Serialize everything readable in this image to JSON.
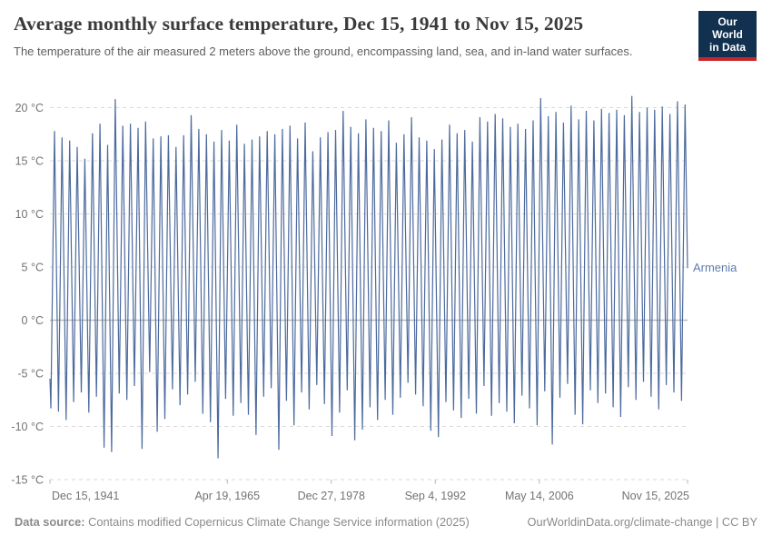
{
  "header": {
    "title": "Average monthly surface temperature, Dec 15, 1941 to Nov 15, 2025",
    "subtitle": "The temperature of the air measured 2 meters above the ground, encompassing land, sea, and in-land water surfaces.",
    "logo": {
      "line1": "Our World",
      "line2": "in Data",
      "bg_color": "#12304f",
      "accent_color": "#c5262c"
    }
  },
  "footer": {
    "datasource_label": "Data source:",
    "datasource_text": " Contains modified Copernicus Climate Change Service information (2025)",
    "credit": "OurWorldinData.org/climate-change | CC BY"
  },
  "chart_data": {
    "type": "line",
    "title": "Average monthly surface temperature, Dec 15, 1941 to Nov 15, 2025",
    "xlabel": "",
    "ylabel": "",
    "unit": "°C",
    "xlim": [
      1941.958,
      2025.874
    ],
    "ylim": [
      -15,
      21.5
    ],
    "grid": "horizontal-dashed",
    "legend": "line-end-label",
    "colors": {
      "line": "#4c6a9d",
      "entity_label": "#5e7cae",
      "grid": "#d9d9d9",
      "zero_line": "#bcbcbc",
      "axis_text": "#737373",
      "tick_mark": "#b3b3b3"
    },
    "y_ticks": [
      {
        "value": 20,
        "label": "20 °C"
      },
      {
        "value": 15,
        "label": "15 °C"
      },
      {
        "value": 10,
        "label": "10 °C"
      },
      {
        "value": 5,
        "label": "5 °C"
      },
      {
        "value": 0,
        "label": "0 °C"
      },
      {
        "value": -5,
        "label": "-5 °C"
      },
      {
        "value": -10,
        "label": "-10 °C"
      },
      {
        "value": -15,
        "label": "-15 °C"
      }
    ],
    "x_ticks": [
      {
        "value": 1941.958,
        "label": "Dec 15, 1941",
        "align": "start"
      },
      {
        "value": 1965.299,
        "label": "Apr 19, 1965",
        "align": "middle"
      },
      {
        "value": 1978.989,
        "label": "Dec 27, 1978",
        "align": "middle"
      },
      {
        "value": 1992.677,
        "label": "Sep 4, 1992",
        "align": "middle"
      },
      {
        "value": 2006.367,
        "label": "May 14, 2006",
        "align": "middle"
      },
      {
        "value": 2025.874,
        "label": "Nov 15, 2025",
        "align": "end"
      }
    ],
    "series": [
      {
        "name": "Armenia",
        "points": [
          [
            1941.96,
            -5.5
          ],
          [
            1942.08,
            -8.3
          ],
          [
            1942.55,
            17.8
          ],
          [
            1943.08,
            -8.6
          ],
          [
            1943.55,
            17.2
          ],
          [
            1944.08,
            -9.4
          ],
          [
            1944.55,
            16.9
          ],
          [
            1945.08,
            -7.7
          ],
          [
            1945.55,
            16.3
          ],
          [
            1946.08,
            -6.8
          ],
          [
            1946.55,
            15.2
          ],
          [
            1947.08,
            -8.7
          ],
          [
            1947.55,
            17.6
          ],
          [
            1948.08,
            -7.2
          ],
          [
            1948.55,
            18.5
          ],
          [
            1949.08,
            -12.0
          ],
          [
            1949.55,
            16.5
          ],
          [
            1950.08,
            -12.4
          ],
          [
            1950.55,
            20.8
          ],
          [
            1951.08,
            -6.9
          ],
          [
            1951.55,
            18.3
          ],
          [
            1952.08,
            -7.5
          ],
          [
            1952.55,
            18.5
          ],
          [
            1953.08,
            -6.2
          ],
          [
            1953.55,
            18.1
          ],
          [
            1954.08,
            -12.1
          ],
          [
            1954.55,
            18.7
          ],
          [
            1955.08,
            -4.9
          ],
          [
            1955.55,
            17.1
          ],
          [
            1956.08,
            -10.5
          ],
          [
            1956.55,
            17.3
          ],
          [
            1957.08,
            -9.3
          ],
          [
            1957.55,
            17.4
          ],
          [
            1958.08,
            -6.5
          ],
          [
            1958.55,
            16.3
          ],
          [
            1959.08,
            -8.0
          ],
          [
            1959.55,
            17.4
          ],
          [
            1960.08,
            -7.0
          ],
          [
            1960.55,
            19.3
          ],
          [
            1961.08,
            -5.8
          ],
          [
            1961.55,
            18.0
          ],
          [
            1962.08,
            -8.8
          ],
          [
            1962.55,
            17.5
          ],
          [
            1963.08,
            -9.6
          ],
          [
            1963.55,
            16.8
          ],
          [
            1964.08,
            -13.0
          ],
          [
            1964.55,
            17.9
          ],
          [
            1965.08,
            -7.4
          ],
          [
            1965.55,
            16.9
          ],
          [
            1966.08,
            -9.0
          ],
          [
            1966.55,
            18.4
          ],
          [
            1967.08,
            -7.8
          ],
          [
            1967.55,
            16.6
          ],
          [
            1968.08,
            -8.9
          ],
          [
            1968.55,
            17.0
          ],
          [
            1969.08,
            -10.8
          ],
          [
            1969.55,
            17.3
          ],
          [
            1970.08,
            -7.2
          ],
          [
            1970.55,
            17.8
          ],
          [
            1971.08,
            -6.4
          ],
          [
            1971.55,
            17.5
          ],
          [
            1972.08,
            -12.2
          ],
          [
            1972.55,
            18.0
          ],
          [
            1973.08,
            -7.6
          ],
          [
            1973.55,
            18.3
          ],
          [
            1974.08,
            -9.9
          ],
          [
            1974.55,
            17.1
          ],
          [
            1975.08,
            -6.8
          ],
          [
            1975.55,
            18.6
          ],
          [
            1976.08,
            -8.4
          ],
          [
            1976.55,
            15.9
          ],
          [
            1977.08,
            -6.1
          ],
          [
            1977.55,
            17.2
          ],
          [
            1978.08,
            -7.9
          ],
          [
            1978.55,
            17.7
          ],
          [
            1979.08,
            -10.9
          ],
          [
            1979.55,
            17.9
          ],
          [
            1980.08,
            -8.7
          ],
          [
            1980.55,
            19.7
          ],
          [
            1981.08,
            -6.6
          ],
          [
            1981.55,
            18.2
          ],
          [
            1982.08,
            -11.3
          ],
          [
            1982.55,
            17.6
          ],
          [
            1983.08,
            -10.3
          ],
          [
            1983.55,
            18.9
          ],
          [
            1984.08,
            -8.2
          ],
          [
            1984.55,
            18.1
          ],
          [
            1985.08,
            -9.4
          ],
          [
            1985.55,
            17.8
          ],
          [
            1986.08,
            -7.5
          ],
          [
            1986.55,
            18.8
          ],
          [
            1987.08,
            -8.9
          ],
          [
            1987.55,
            16.7
          ],
          [
            1988.08,
            -7.3
          ],
          [
            1988.55,
            17.5
          ],
          [
            1989.08,
            -5.9
          ],
          [
            1989.55,
            19.1
          ],
          [
            1990.08,
            -7.0
          ],
          [
            1990.55,
            17.2
          ],
          [
            1991.08,
            -8.1
          ],
          [
            1991.55,
            16.9
          ],
          [
            1992.08,
            -10.4
          ],
          [
            1992.55,
            16.1
          ],
          [
            1993.08,
            -11.0
          ],
          [
            1993.55,
            17.0
          ],
          [
            1994.08,
            -7.7
          ],
          [
            1994.55,
            18.4
          ],
          [
            1995.08,
            -8.5
          ],
          [
            1995.55,
            17.6
          ],
          [
            1996.08,
            -9.2
          ],
          [
            1996.55,
            17.9
          ],
          [
            1997.08,
            -7.4
          ],
          [
            1997.55,
            16.8
          ],
          [
            1998.08,
            -8.8
          ],
          [
            1998.55,
            19.1
          ],
          [
            1999.08,
            -6.2
          ],
          [
            1999.55,
            18.7
          ],
          [
            2000.08,
            -9.0
          ],
          [
            2000.55,
            19.4
          ],
          [
            2001.08,
            -7.8
          ],
          [
            2001.55,
            19.0
          ],
          [
            2002.08,
            -8.6
          ],
          [
            2002.55,
            18.2
          ],
          [
            2003.08,
            -9.7
          ],
          [
            2003.55,
            18.5
          ],
          [
            2004.08,
            -7.1
          ],
          [
            2004.55,
            18.0
          ],
          [
            2005.08,
            -8.3
          ],
          [
            2005.55,
            18.8
          ],
          [
            2006.08,
            -9.9
          ],
          [
            2006.55,
            20.9
          ],
          [
            2007.08,
            -6.7
          ],
          [
            2007.55,
            19.2
          ],
          [
            2008.08,
            -11.7
          ],
          [
            2008.55,
            19.6
          ],
          [
            2009.08,
            -7.3
          ],
          [
            2009.55,
            18.6
          ],
          [
            2010.08,
            -6.0
          ],
          [
            2010.55,
            20.2
          ],
          [
            2011.08,
            -8.9
          ],
          [
            2011.55,
            18.9
          ],
          [
            2012.08,
            -9.8
          ],
          [
            2012.55,
            19.7
          ],
          [
            2013.08,
            -6.6
          ],
          [
            2013.55,
            18.8
          ],
          [
            2014.08,
            -7.8
          ],
          [
            2014.55,
            19.9
          ],
          [
            2015.08,
            -6.9
          ],
          [
            2015.55,
            19.5
          ],
          [
            2016.08,
            -8.2
          ],
          [
            2016.55,
            19.8
          ],
          [
            2017.08,
            -9.1
          ],
          [
            2017.55,
            19.3
          ],
          [
            2018.08,
            -6.3
          ],
          [
            2018.55,
            21.1
          ],
          [
            2019.08,
            -7.5
          ],
          [
            2019.55,
            19.6
          ],
          [
            2020.08,
            -5.8
          ],
          [
            2020.55,
            20.0
          ],
          [
            2021.08,
            -7.2
          ],
          [
            2021.55,
            19.8
          ],
          [
            2022.08,
            -8.4
          ],
          [
            2022.55,
            20.1
          ],
          [
            2023.08,
            -6.1
          ],
          [
            2023.55,
            19.4
          ],
          [
            2024.08,
            -6.8
          ],
          [
            2024.55,
            20.6
          ],
          [
            2025.08,
            -7.6
          ],
          [
            2025.55,
            20.3
          ],
          [
            2025.87,
            4.9
          ]
        ]
      }
    ]
  }
}
